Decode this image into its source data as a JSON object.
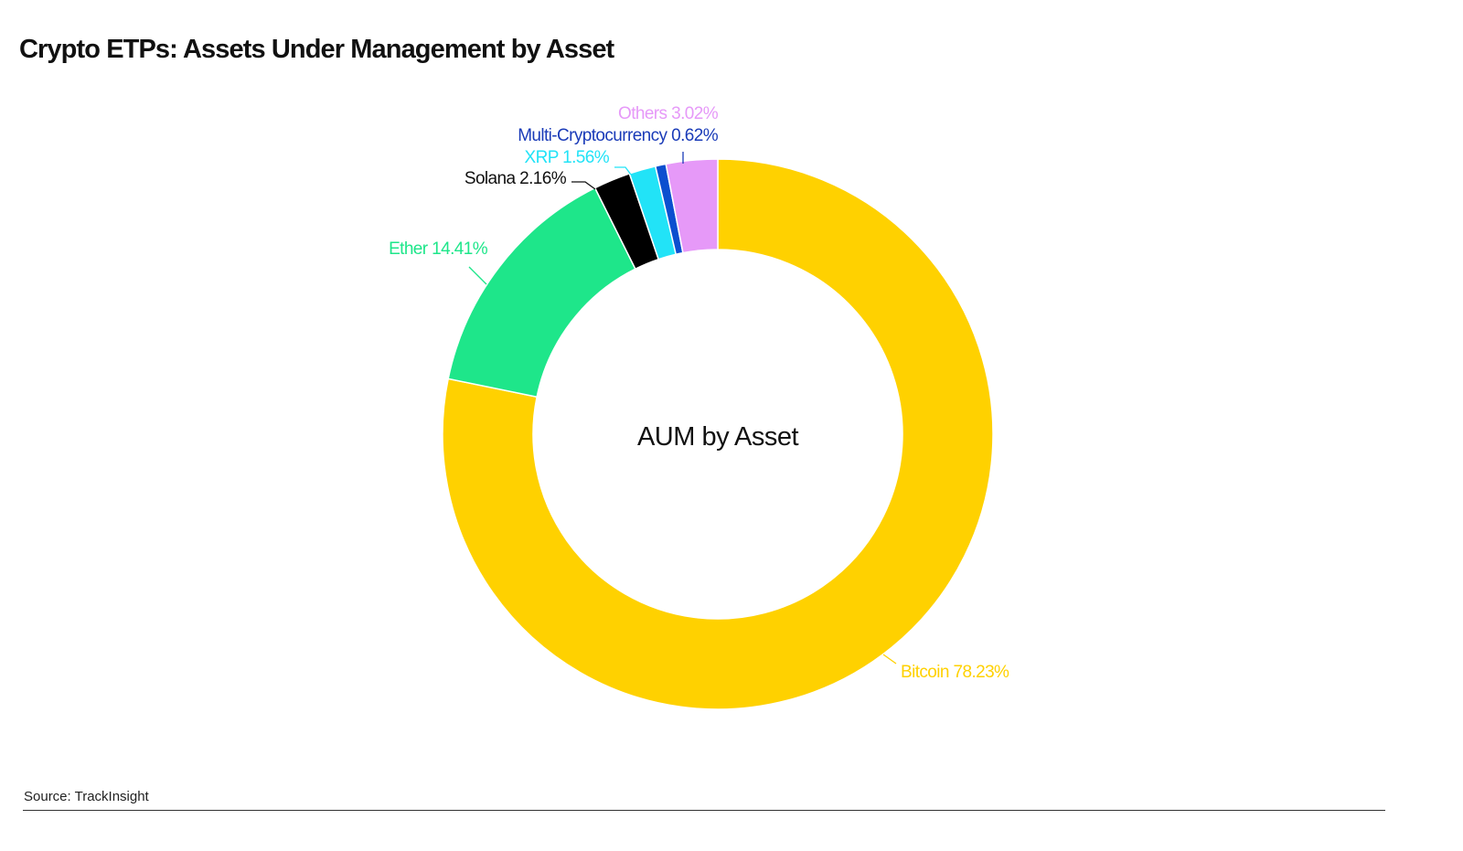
{
  "title": "Crypto ETPs: Assets Under Management by Asset",
  "source": "Source: TrackInsight",
  "chart_data": {
    "type": "pie",
    "donut": true,
    "center_label": "AUM by Asset",
    "direction": "clockwise from top",
    "slices": [
      {
        "label": "Bitcoin",
        "value": 78.23,
        "text": "Bitcoin 78.23%",
        "color": "#FFD100",
        "label_color": "#FFD100"
      },
      {
        "label": "Ether",
        "value": 14.41,
        "text": "Ether 14.41%",
        "color": "#1EE68A",
        "label_color": "#1EE68A"
      },
      {
        "label": "Solana",
        "value": 2.16,
        "text": "Solana 2.16%",
        "color": "#000000",
        "label_color": "#111111"
      },
      {
        "label": "XRP",
        "value": 1.56,
        "text": "XRP 1.56%",
        "color": "#22E3F7",
        "label_color": "#22E3F7"
      },
      {
        "label": "Multi-Cryptocurrency",
        "value": 0.62,
        "text": "Multi-Cryptocurrency 0.62%",
        "color": "#0B4FCF",
        "label_color": "#1A3BB8"
      },
      {
        "label": "Others",
        "value": 3.02,
        "text": "Others 3.02%",
        "color": "#E699F8",
        "label_color": "#E699F8"
      }
    ]
  }
}
